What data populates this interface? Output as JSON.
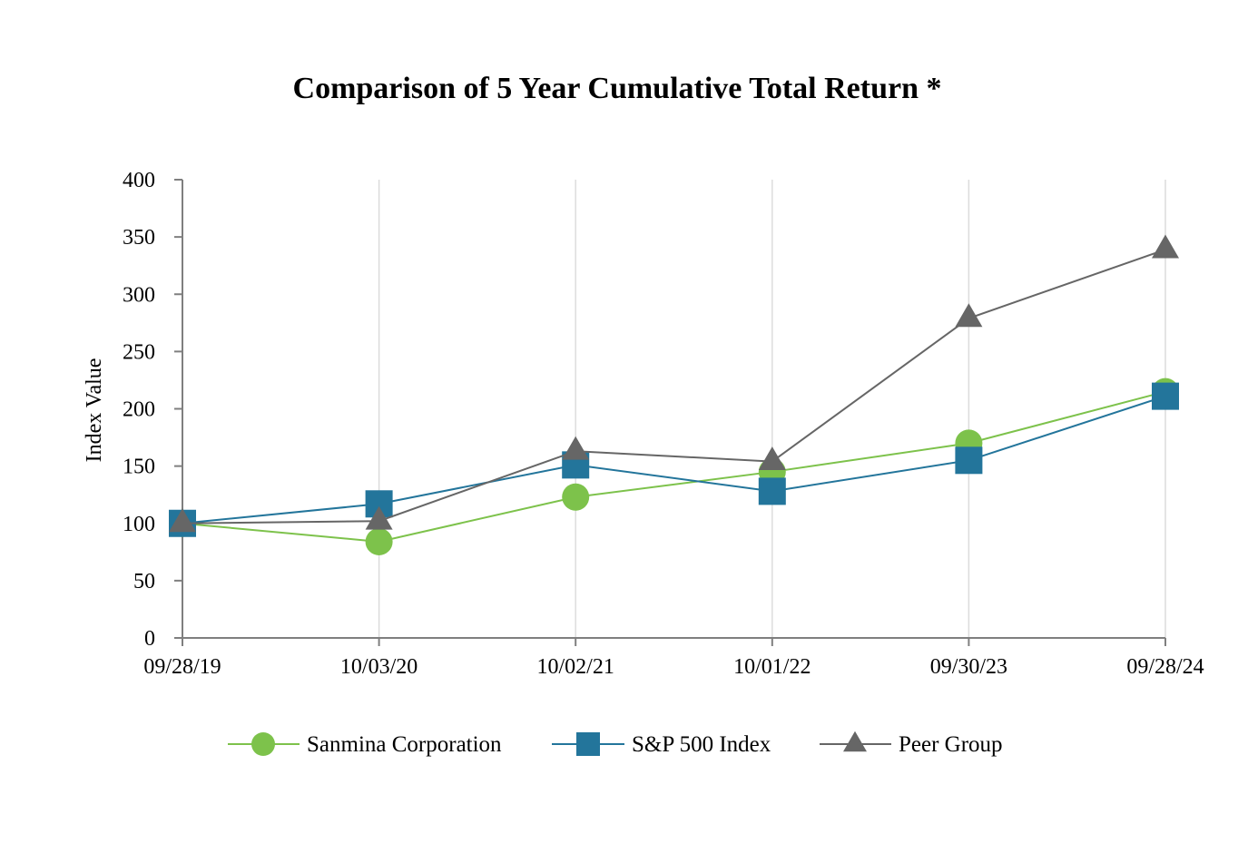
{
  "chart_data": {
    "type": "line",
    "title": "Comparison of 5 Year Cumulative Total Return *",
    "xlabel": "",
    "ylabel": "Index Value",
    "categories": [
      "09/28/19",
      "10/03/20",
      "10/02/21",
      "10/01/22",
      "09/30/23",
      "09/28/24"
    ],
    "yticks": [
      0,
      50,
      100,
      150,
      200,
      250,
      300,
      350,
      400
    ],
    "ylim": [
      0,
      400
    ],
    "grid": "vertical",
    "legend_position": "bottom",
    "series": [
      {
        "name": "Sanmina Corporation",
        "marker": "circle",
        "color": "#7dc24b",
        "values": [
          100,
          84,
          123,
          145,
          170,
          215
        ]
      },
      {
        "name": "S&P 500 Index",
        "marker": "square",
        "color": "#23759b",
        "values": [
          100,
          117,
          151,
          128,
          155,
          211
        ]
      },
      {
        "name": "Peer Group",
        "marker": "triangle",
        "color": "#666666",
        "values": [
          100,
          102,
          163,
          154,
          279,
          339
        ]
      }
    ]
  }
}
